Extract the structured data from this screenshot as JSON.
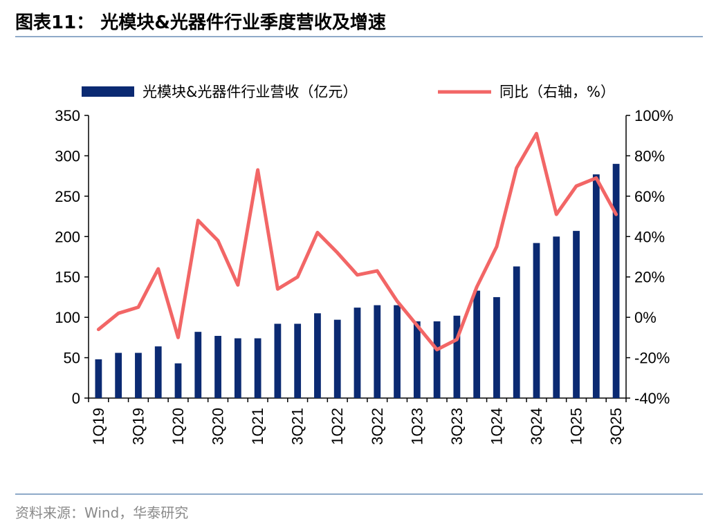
{
  "title": "图表11：  光模块&光器件行业季度营收及增速",
  "source": "资料来源：Wind，华泰研究",
  "colors": {
    "bar": "#0b2a72",
    "line": "#f26666",
    "rule": "#8ea9c8"
  },
  "chart_data": {
    "type": "bar",
    "categories": [
      "1Q19",
      "2Q19",
      "3Q19",
      "4Q19",
      "1Q20",
      "2Q20",
      "3Q20",
      "4Q20",
      "1Q21",
      "2Q21",
      "3Q21",
      "4Q21",
      "1Q22",
      "2Q22",
      "3Q22",
      "4Q22",
      "1Q23",
      "2Q23",
      "3Q23",
      "4Q23",
      "1Q24",
      "2Q24",
      "3Q24",
      "4Q24",
      "1Q25",
      "2Q25",
      "3Q25"
    ],
    "x_tick_labels": [
      "1Q19",
      "3Q19",
      "1Q20",
      "3Q20",
      "1Q21",
      "3Q21",
      "1Q22",
      "3Q22",
      "1Q23",
      "3Q23",
      "1Q24",
      "3Q24",
      "1Q25",
      "3Q25"
    ],
    "series": [
      {
        "name": "光模块&光器件行业营收（亿元）",
        "type": "bar",
        "axis": "left",
        "values": [
          48,
          56,
          56,
          64,
          43,
          82,
          77,
          74,
          74,
          92,
          92,
          105,
          97,
          112,
          115,
          115,
          95,
          95,
          102,
          133,
          125,
          163,
          192,
          200,
          207,
          277,
          290
        ]
      },
      {
        "name": "同比（右轴，%）",
        "type": "line",
        "axis": "right",
        "values": [
          -6,
          2,
          5,
          24,
          -10,
          48,
          38,
          16,
          73,
          14,
          20,
          42,
          32,
          21,
          23,
          8,
          -4,
          -16,
          -11,
          15,
          35,
          74,
          91,
          51,
          65,
          69,
          51
        ]
      }
    ],
    "y_left": {
      "min": 0,
      "max": 350,
      "ticks": [
        0,
        50,
        100,
        150,
        200,
        250,
        300,
        350
      ]
    },
    "y_right": {
      "min": -40,
      "max": 100,
      "ticks": [
        -40,
        -20,
        0,
        20,
        40,
        60,
        80,
        100
      ],
      "tick_labels": [
        "-40%",
        "-20%",
        "0%",
        "20%",
        "40%",
        "60%",
        "80%",
        "100%"
      ]
    },
    "legend_position": "top",
    "grid": false
  }
}
